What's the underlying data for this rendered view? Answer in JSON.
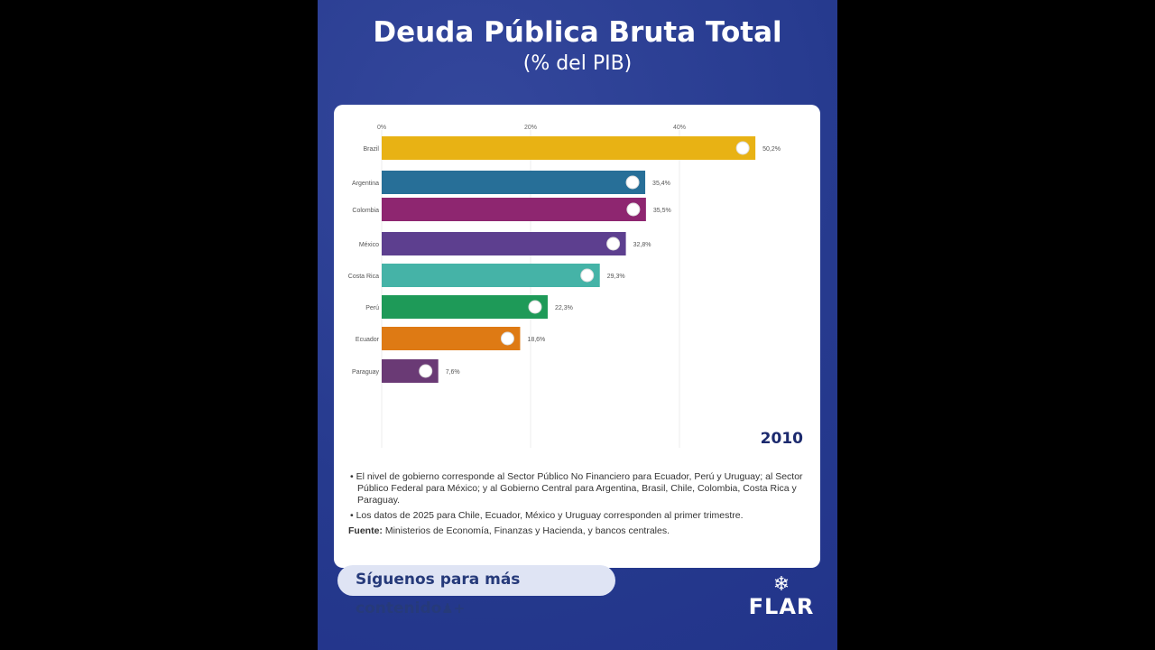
{
  "header": {
    "title": "Deuda Pública Bruta Total",
    "subtitle": "(% del PIB)"
  },
  "chart_data": {
    "type": "bar",
    "orientation": "horizontal",
    "categories": [
      "Brazil",
      "Argentina",
      "Colombia",
      "México",
      "Costa Rica",
      "Perú",
      "Ecuador",
      "Paraguay"
    ],
    "values": [
      50.2,
      35.4,
      35.5,
      32.8,
      29.3,
      22.3,
      18.6,
      7.6
    ],
    "value_labels": [
      "50,2%",
      "35,4%",
      "35,5%",
      "32,8%",
      "29,3%",
      "22,3%",
      "18,6%",
      "7,6%"
    ],
    "colors": [
      "#e8b214",
      "#276f98",
      "#8e2670",
      "#5d3f8f",
      "#45b3a7",
      "#1e9a58",
      "#de7a14",
      "#6a3a75"
    ],
    "x_ticks": [
      "0%",
      "20%",
      "40%"
    ],
    "x_tick_values": [
      0,
      20,
      40
    ],
    "xlim": [
      0,
      55
    ],
    "grid": true,
    "year": "2010"
  },
  "notes": [
    "El nivel de gobierno corresponde al Sector Público No Financiero para Ecuador, Perú y Uruguay; al Sector Público Federal para México; y al Gobierno Central para Argentina, Brasil, Chile, Colombia, Costa Rica y Paraguay.",
    "Los datos de 2025 para Chile, Ecuador, México y Uruguay corresponden al primer trimestre."
  ],
  "source": {
    "label": "Fuente:",
    "text": "Ministerios de Economía, Finanzas y Hacienda, y bancos centrales."
  },
  "follow": {
    "label": "Síguenos para más contenido"
  },
  "logo": {
    "text": "FLAR"
  }
}
